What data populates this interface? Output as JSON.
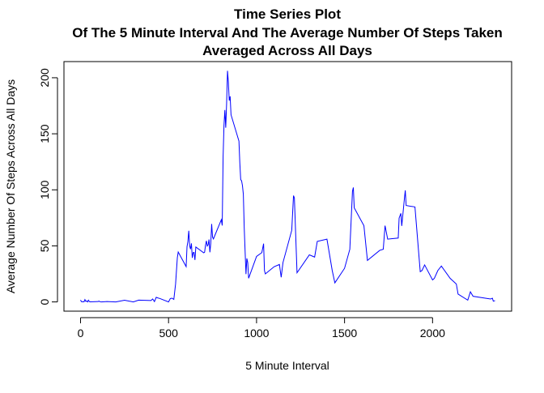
{
  "chart_data": {
    "type": "line",
    "title": [
      "Time Series Plot",
      "Of The 5 Minute Interval And The Average Number Of Steps Taken",
      "Averaged Across All Days"
    ],
    "x_label": "5 Minute Interval",
    "y_label": "Average Number Of Steps Across All Days",
    "x": [
      0,
      5,
      10,
      15,
      20,
      25,
      30,
      35,
      40,
      45,
      50,
      55,
      100,
      105,
      110,
      120,
      150,
      200,
      250,
      300,
      330,
      400,
      410,
      420,
      430,
      440,
      450,
      500,
      510,
      520,
      530,
      540,
      550,
      555,
      600,
      605,
      610,
      615,
      620,
      625,
      630,
      635,
      640,
      645,
      650,
      655,
      700,
      705,
      710,
      715,
      720,
      725,
      730,
      735,
      740,
      745,
      750,
      755,
      800,
      805,
      810,
      815,
      820,
      825,
      830,
      835,
      840,
      845,
      850,
      855,
      900,
      905,
      910,
      915,
      920,
      925,
      930,
      935,
      940,
      945,
      950,
      955,
      1000,
      1030,
      1040,
      1045,
      1050,
      1100,
      1130,
      1140,
      1150,
      1200,
      1210,
      1215,
      1230,
      1300,
      1330,
      1345,
      1400,
      1430,
      1445,
      1500,
      1530,
      1545,
      1550,
      1555,
      1610,
      1630,
      1700,
      1720,
      1730,
      1745,
      1805,
      1810,
      1820,
      1825,
      1840,
      1845,
      1850,
      1900,
      1930,
      1940,
      1955,
      2000,
      2010,
      2030,
      2050,
      2100,
      2135,
      2145,
      2200,
      2215,
      2230,
      2300,
      2330,
      2340,
      2345,
      2355
    ],
    "series": [
      {
        "name": "steps",
        "color": "#0000ff",
        "values": [
          1.7,
          0.3,
          0.1,
          0.2,
          0.1,
          2.1,
          0.5,
          0.9,
          0,
          1.5,
          0.3,
          0.1,
          0.3,
          0.7,
          0.2,
          0,
          0.3,
          0,
          1.5,
          0,
          1.6,
          1.2,
          2.6,
          0.3,
          4.1,
          3.5,
          3.1,
          0,
          3,
          3.3,
          2.2,
          16,
          39.5,
          44.5,
          31.5,
          49.3,
          53.8,
          63.5,
          50,
          47.1,
          52.2,
          39.3,
          44,
          44.2,
          37.4,
          49,
          43.8,
          44.4,
          50.5,
          54.5,
          49.9,
          51,
          55.7,
          44.3,
          52.3,
          69.5,
          57.8,
          56.2,
          73.4,
          68.2,
          129.4,
          157.5,
          171.2,
          155.4,
          177.3,
          206.2,
          195.9,
          179.6,
          183.4,
          167,
          143.5,
          124,
          109.1,
          108.1,
          103.7,
          96,
          66.2,
          45.2,
          24.8,
          38.8,
          35,
          21.1,
          40.6,
          44,
          52,
          28,
          25,
          31.4,
          33.4,
          22,
          35,
          63.9,
          94.8,
          92.8,
          26,
          42,
          40,
          54,
          56,
          28,
          17,
          30,
          47,
          98.7,
          102.1,
          83.9,
          68,
          37,
          46,
          47,
          68,
          56,
          57,
          74.7,
          79,
          67.8,
          92,
          99.5,
          86,
          84.7,
          27,
          28,
          33,
          19.6,
          21,
          28,
          32,
          21,
          16,
          7,
          1.6,
          9,
          5,
          3.3,
          2.6,
          3.3,
          0.7,
          1.1
        ]
      }
    ],
    "xlim": [
      -94.2,
      2449.2
    ],
    "ylim": [
      -8.25,
      214.42
    ],
    "xticks": [
      0,
      500,
      1000,
      1500,
      2000
    ],
    "yticks": [
      0,
      50,
      100,
      150,
      200
    ]
  }
}
